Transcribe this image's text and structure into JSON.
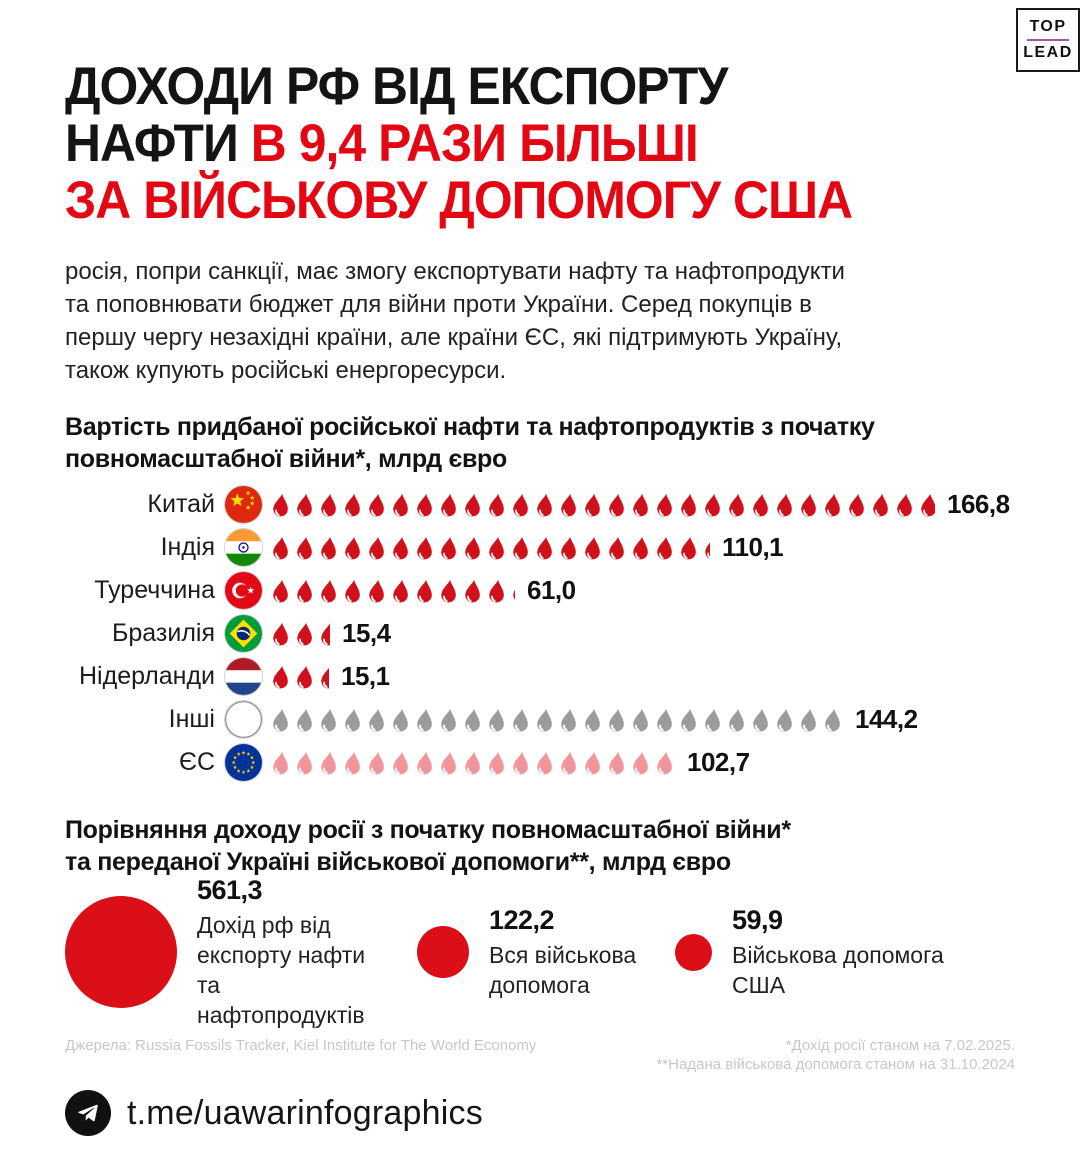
{
  "header": {
    "title_lines": [
      {
        "segments": [
          {
            "text": "ДОХОДИ РФ ВІД ЕКСПОРТУ",
            "color": "dark"
          }
        ]
      },
      {
        "segments": [
          {
            "text": "НАФТИ ",
            "color": "dark"
          },
          {
            "text": "В 9,4 РАЗИ БІЛЬШІ",
            "color": "red"
          }
        ]
      },
      {
        "segments": [
          {
            "text": "ЗА ВІЙСЬКОВУ ДОПОМОГУ США",
            "color": "red"
          }
        ]
      }
    ],
    "logo": {
      "top": "TOP",
      "lead": "LEAD"
    }
  },
  "intro": "росія, попри санкції, має змогу експортувати нафту та нафтопродукти та поповнювати бюджет для війни проти України. Серед покупців в першу чергу незахідні країни, але країни ЄС, які підтримують Україну, також купують російські енергоресурси.",
  "chart_data": [
    {
      "type": "bar",
      "subtype": "pictogram",
      "title": "Вартість придбаної російської нафти та нафтопродуктів з початку повномасштабної війни*, млрд євро",
      "icon": "blood-drop",
      "units_per_icon": 6,
      "categories": [
        "Китай",
        "Індія",
        "Туреччина",
        "Бразилія",
        "Нідерланди",
        "Інші",
        "ЄС"
      ],
      "values": [
        166.8,
        110.1,
        61.0,
        15.4,
        15.1,
        144.2,
        102.7
      ],
      "rows": [
        {
          "label": "Китай",
          "flag": "china",
          "value": 166.8,
          "display": "166,8",
          "color": "#d0111b"
        },
        {
          "label": "Індія",
          "flag": "india",
          "value": 110.1,
          "display": "110,1",
          "color": "#d0111b"
        },
        {
          "label": "Туреччина",
          "flag": "turkey",
          "value": 61.0,
          "display": "61,0",
          "color": "#d0111b"
        },
        {
          "label": "Бразилія",
          "flag": "brazil",
          "value": 15.4,
          "display": "15,4",
          "color": "#d0111b"
        },
        {
          "label": "Нідерланди",
          "flag": "netherlands",
          "value": 15.1,
          "display": "15,1",
          "color": "#d0111b"
        },
        {
          "label": "Інші",
          "flag": "others",
          "value": 144.2,
          "display": "144,2",
          "color": "#9c9c9c"
        },
        {
          "label": "ЄС",
          "flag": "eu",
          "value": 102.7,
          "display": "102,7",
          "color": "#f0969b"
        }
      ]
    },
    {
      "type": "bubble",
      "title_lines": [
        "Порівняння доходу росії з початку повномасштабної війни*",
        "та переданої Україні військової допомоги**, млрд євро"
      ],
      "items": [
        {
          "value": 561.3,
          "display": "561,3",
          "label": "Дохід рф від експорту нафти та нафтопродуктів"
        },
        {
          "value": 122.2,
          "display": "122,2",
          "label": "Вся військова допомога"
        },
        {
          "value": 59.9,
          "display": "59,9",
          "label": "Військова допомога США"
        }
      ],
      "bubble_color": "#da0f18"
    }
  ],
  "footer": {
    "sources": "Джерела: Russia Fossils Tracker, Kiel Institute for The World Economy",
    "note1": "*Дохід росії станом на 7.02.2025.",
    "note2": "**Надана військова допомога станом на 31.10.2024",
    "telegram": "t.me/uawarinfographics"
  },
  "colors": {
    "accent_red": "#e30613",
    "drop_red": "#d0111b",
    "drop_gray": "#9c9c9c",
    "drop_pink": "#f0969b",
    "logo_rule_purple": "#a855a0",
    "source_gray": "#c7c7c7"
  }
}
